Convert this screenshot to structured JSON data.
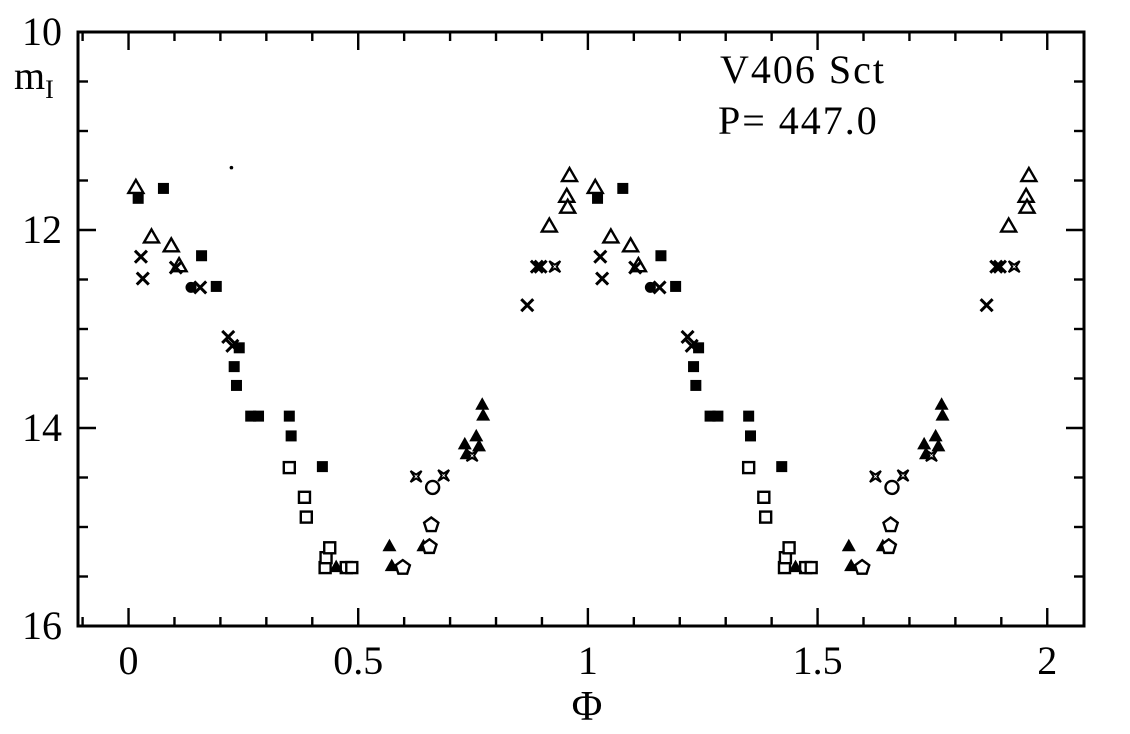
{
  "chart_data": {
    "type": "scatter",
    "title": "V406 Sct",
    "subtitle": "P= 447.0",
    "xlabel": "Φ",
    "description": "Phased I-band light curve; every measurement is plotted twice, at phase Φ and Φ+1",
    "x_axis": {
      "label": "Φ",
      "range": [
        -0.11,
        2.08
      ],
      "major_ticks": [
        0,
        0.5,
        1,
        1.5,
        2
      ],
      "tick_labels": [
        "0",
        "0.5",
        "1",
        "1.5",
        "2"
      ],
      "minor_step": 0.1
    },
    "y_axis": {
      "label_main": "m",
      "label_sub": "I",
      "range": [
        10,
        16
      ],
      "inverted_magnitude_axis": true,
      "major_ticks": [
        10,
        12,
        14,
        16
      ],
      "tick_labels": [
        "10",
        "12",
        "14",
        "16"
      ],
      "minor_step": 0.5
    },
    "grid": false,
    "legend": "none",
    "marker_color": "#000000",
    "background_color": "#ffffff",
    "series": [
      {
        "name": "open-triangle",
        "marker": "triangle-open",
        "duplicate_at_plus_one": true,
        "points": [
          [
            0.016,
            11.57
          ],
          [
            0.05,
            12.07
          ],
          [
            0.093,
            12.16
          ],
          [
            0.11,
            12.36
          ],
          [
            0.916,
            11.96
          ],
          [
            0.954,
            11.66
          ],
          [
            0.956,
            11.77
          ],
          [
            0.96,
            11.45
          ]
        ]
      },
      {
        "name": "filled-square",
        "marker": "square-filled",
        "duplicate_at_plus_one": true,
        "points": [
          [
            0.021,
            11.68
          ],
          [
            0.076,
            11.58
          ],
          [
            0.159,
            12.26
          ],
          [
            0.191,
            12.57
          ],
          [
            0.23,
            13.38
          ],
          [
            0.235,
            13.57
          ],
          [
            0.241,
            13.19
          ],
          [
            0.266,
            13.88
          ],
          [
            0.283,
            13.88
          ],
          [
            0.35,
            13.88
          ],
          [
            0.354,
            14.08
          ],
          [
            0.422,
            14.39
          ]
        ]
      },
      {
        "name": "cross",
        "marker": "x",
        "duplicate_at_plus_one": true,
        "points": [
          [
            0.027,
            12.27
          ],
          [
            0.031,
            12.49
          ],
          [
            0.103,
            12.38
          ],
          [
            0.156,
            12.58
          ],
          [
            0.217,
            13.08
          ],
          [
            0.226,
            13.17
          ],
          [
            0.868,
            12.76
          ],
          [
            0.889,
            12.37
          ],
          [
            0.897,
            12.37
          ]
        ]
      },
      {
        "name": "filled-circle",
        "marker": "circle-filled",
        "duplicate_at_plus_one": true,
        "points": [
          [
            0.136,
            12.58
          ]
        ]
      },
      {
        "name": "open-square",
        "marker": "square-open",
        "duplicate_at_plus_one": true,
        "points": [
          [
            0.35,
            14.4
          ],
          [
            0.383,
            14.7
          ],
          [
            0.387,
            14.9
          ],
          [
            0.428,
            15.41
          ],
          [
            0.43,
            15.31
          ],
          [
            0.438,
            15.21
          ],
          [
            0.474,
            15.41
          ],
          [
            0.486,
            15.41
          ]
        ]
      },
      {
        "name": "filled-triangle",
        "marker": "triangle-filled",
        "duplicate_at_plus_one": true,
        "points": [
          [
            0.452,
            15.4
          ],
          [
            0.568,
            15.19
          ],
          [
            0.573,
            15.39
          ],
          [
            0.642,
            15.19
          ],
          [
            0.732,
            14.16
          ],
          [
            0.736,
            14.26
          ],
          [
            0.757,
            14.08
          ],
          [
            0.763,
            14.18
          ],
          [
            0.77,
            13.76
          ],
          [
            0.772,
            13.87
          ]
        ]
      },
      {
        "name": "open-circle",
        "marker": "circle-open",
        "duplicate_at_plus_one": true,
        "points": [
          [
            0.662,
            14.6
          ]
        ]
      },
      {
        "name": "open-pentagon",
        "marker": "pentagon-open",
        "duplicate_at_plus_one": true,
        "points": [
          [
            0.597,
            15.41
          ],
          [
            0.655,
            15.2
          ],
          [
            0.659,
            14.98
          ]
        ]
      },
      {
        "name": "four-point-star",
        "marker": "star4-open",
        "duplicate_at_plus_one": true,
        "points": [
          [
            0.626,
            14.49
          ],
          [
            0.686,
            14.48
          ],
          [
            0.748,
            14.28
          ],
          [
            0.928,
            12.37
          ]
        ]
      },
      {
        "name": "scan-speck",
        "marker": "dot",
        "duplicate_at_plus_one": false,
        "points": [
          [
            0.224,
            11.37
          ]
        ]
      }
    ]
  }
}
